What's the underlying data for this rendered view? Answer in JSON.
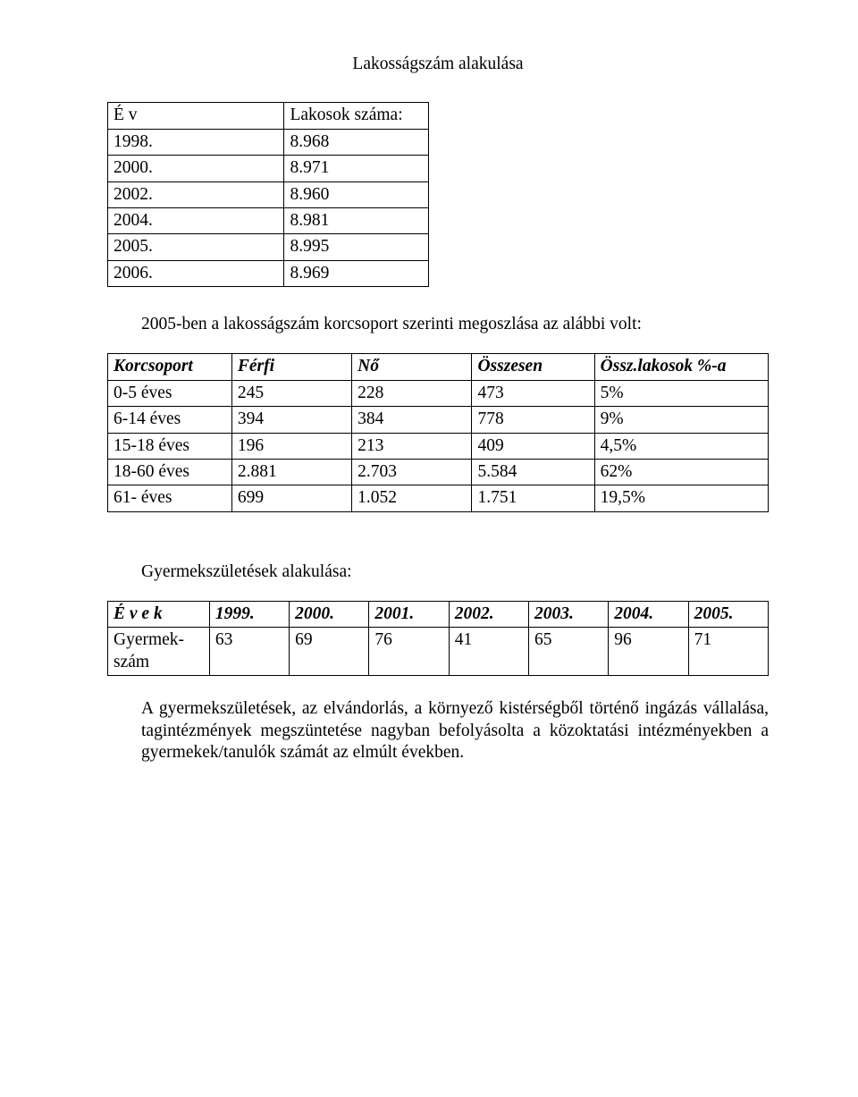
{
  "title": "Lakosságszám alakulása",
  "table1": {
    "headers": [
      "É v",
      "Lakosok száma:"
    ],
    "rows": [
      [
        "1998.",
        "8.968"
      ],
      [
        "2000.",
        "8.971"
      ],
      [
        "2002.",
        "8.960"
      ],
      [
        "2004.",
        "8.981"
      ],
      [
        "2005.",
        "8.995"
      ],
      [
        "2006.",
        "8.969"
      ]
    ]
  },
  "mid_paragraph": "2005-ben a lakosságszám korcsoport szerinti megoszlása az alábbi volt:",
  "table2": {
    "headers": [
      "Korcsoport",
      "Férfi",
      "Nő",
      "Összesen",
      "Össz.lakosok %-a"
    ],
    "rows": [
      [
        " 0-5 éves",
        "245",
        "228",
        "473",
        "5%"
      ],
      [
        " 6-14 éves",
        "394",
        "384",
        "778",
        "9%"
      ],
      [
        "15-18 éves",
        "196",
        "213",
        "409",
        "4,5%"
      ],
      [
        "18-60 éves",
        "2.881",
        "2.703",
        "5.584",
        "62%"
      ],
      [
        "61-     éves",
        "699",
        "1.052",
        "1.751",
        "19,5%"
      ]
    ]
  },
  "subheading": "Gyermekszületések alakulása:",
  "table3": {
    "row_label_header": "É v e k",
    "row_label_data": "Gyermek-szám",
    "years": [
      "1999.",
      "2000.",
      "2001.",
      "2002.",
      "2003.",
      "2004.",
      "2005."
    ],
    "values": [
      "63",
      "69",
      "76",
      "41",
      "65",
      "96",
      "71"
    ]
  },
  "closing_paragraph": "A gyermekszületések, az elvándorlás, a környező kistérségből történő  ingázás vállalása,  tagintézmények megszüntetése nagyban befolyásolta a közoktatási intézményekben a gyermekek/tanulók számát az elmúlt években."
}
